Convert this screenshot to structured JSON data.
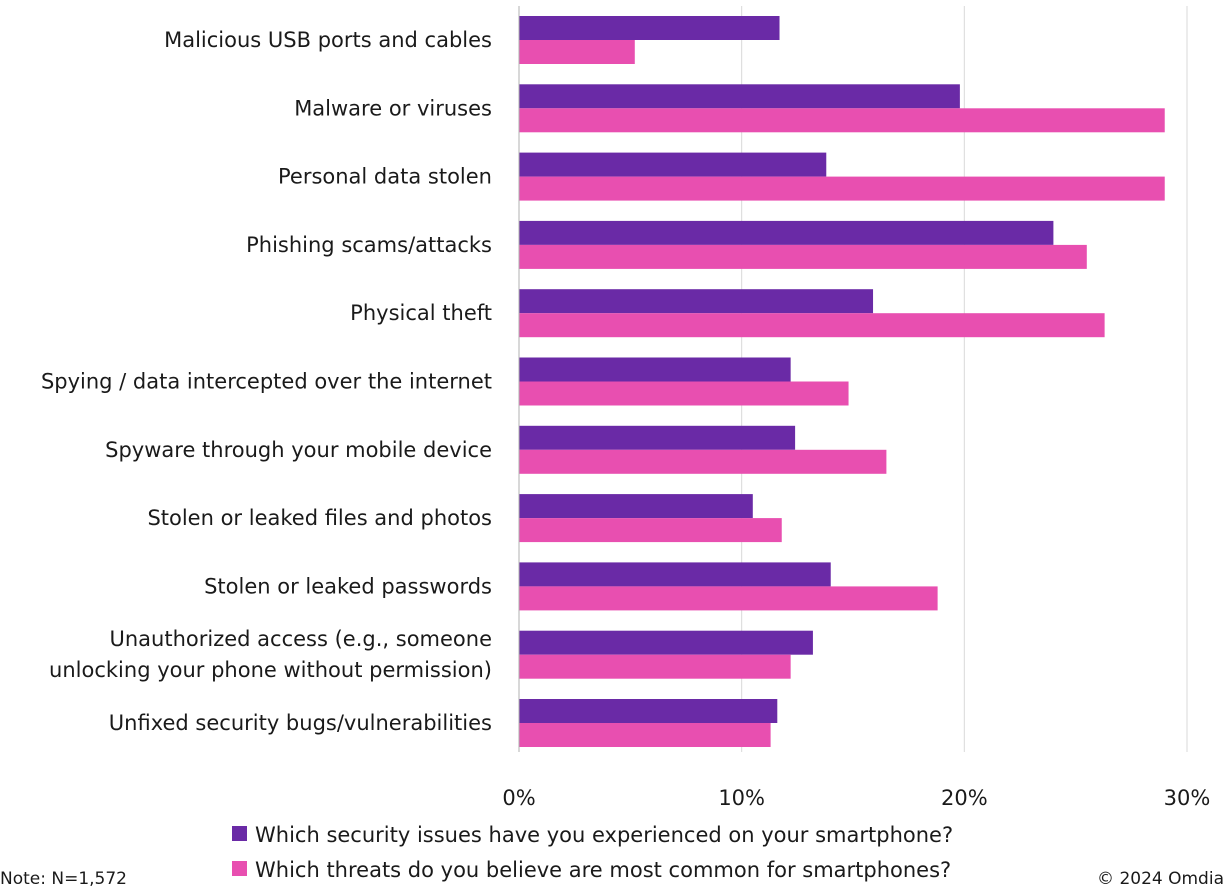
{
  "chart_data": {
    "type": "bar",
    "orientation": "horizontal",
    "categories": [
      [
        "Malicious USB ports and cables"
      ],
      [
        "Malware or viruses"
      ],
      [
        "Personal data stolen"
      ],
      [
        "Phishing scams/attacks"
      ],
      [
        "Physical theft"
      ],
      [
        "Spying / data intercepted over the internet"
      ],
      [
        "Spyware through your mobile device"
      ],
      [
        "Stolen or leaked files and photos"
      ],
      [
        "Stolen or leaked passwords"
      ],
      [
        "Unauthorized access (e.g., someone",
        "unlocking your phone without permission)"
      ],
      [
        "Unfixed security bugs/vulnerabilities"
      ]
    ],
    "series": [
      {
        "name": "Which security issues have you experienced on your smartphone?",
        "color": "#6a2aa6",
        "values": [
          11.7,
          19.8,
          13.8,
          24.0,
          15.9,
          12.2,
          12.4,
          10.5,
          14.0,
          13.2,
          11.6
        ]
      },
      {
        "name": "Which threats do you believe are most common for smartphones?",
        "color": "#e84fb0",
        "values": [
          5.2,
          29.0,
          29.0,
          25.5,
          26.3,
          14.8,
          16.5,
          11.8,
          18.8,
          12.2,
          11.3
        ]
      }
    ],
    "xlim": [
      0,
      30
    ],
    "xticks": [
      "0%",
      "10%",
      "20%",
      "30%"
    ],
    "grid": "vertical",
    "legend": "bottom"
  },
  "footer": {
    "note": "Note: N=1,572",
    "copyright": "© 2024 Omdia"
  }
}
